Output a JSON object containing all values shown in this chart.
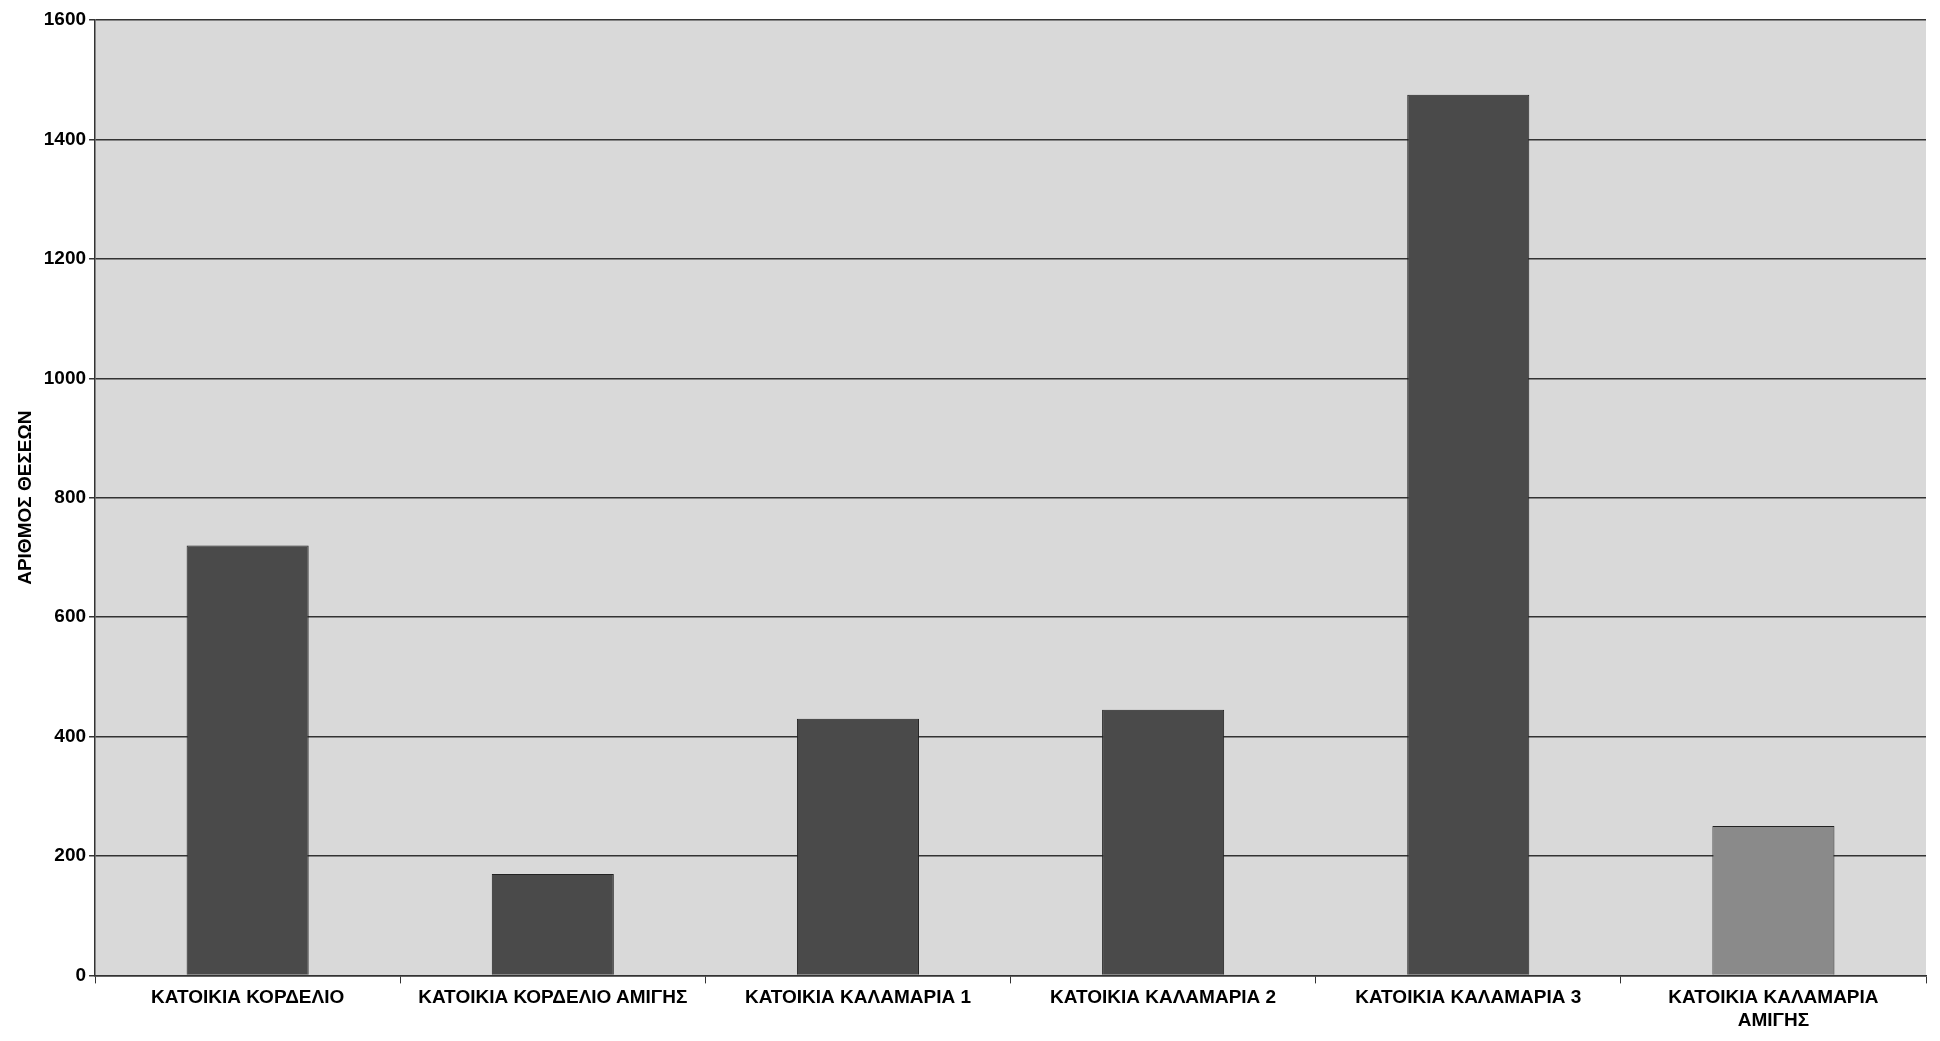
{
  "chart_data": {
    "type": "bar",
    "ylabel": "ΑΡΙΘΜΟΣ ΘΕΣΕΩΝ",
    "categories": [
      "ΚΑΤΟΙΚΙΑ ΚΟΡΔΕΛΙΟ",
      "ΚΑΤΟΙΚΙΑ ΚΟΡΔΕΛΙΟ ΑΜΙΓΗΣ",
      "ΚΑΤΟΙΚΙΑ ΚΑΛΑΜΑΡΙΑ 1",
      "ΚΑΤΟΙΚΙΑ ΚΑΛΑΜΑΡΙΑ 2",
      "ΚΑΤΟΙΚΙΑ ΚΑΛΑΜΑΡΙΑ 3",
      "ΚΑΤΟΙΚΙΑ ΚΑΛΑΜΑΡΙΑ ΑΜΙΓΗΣ"
    ],
    "values": [
      720,
      170,
      430,
      445,
      1475,
      250
    ],
    "colors": [
      "#4a4a4a",
      "#4a4a4a",
      "#4a4a4a",
      "#4a4a4a",
      "#4a4a4a",
      "#8a8a8a"
    ],
    "ylim": [
      0,
      1600
    ],
    "yticks": [
      0,
      200,
      400,
      600,
      800,
      1000,
      1200,
      1400,
      1600
    ],
    "grid": "y",
    "legend": false
  }
}
